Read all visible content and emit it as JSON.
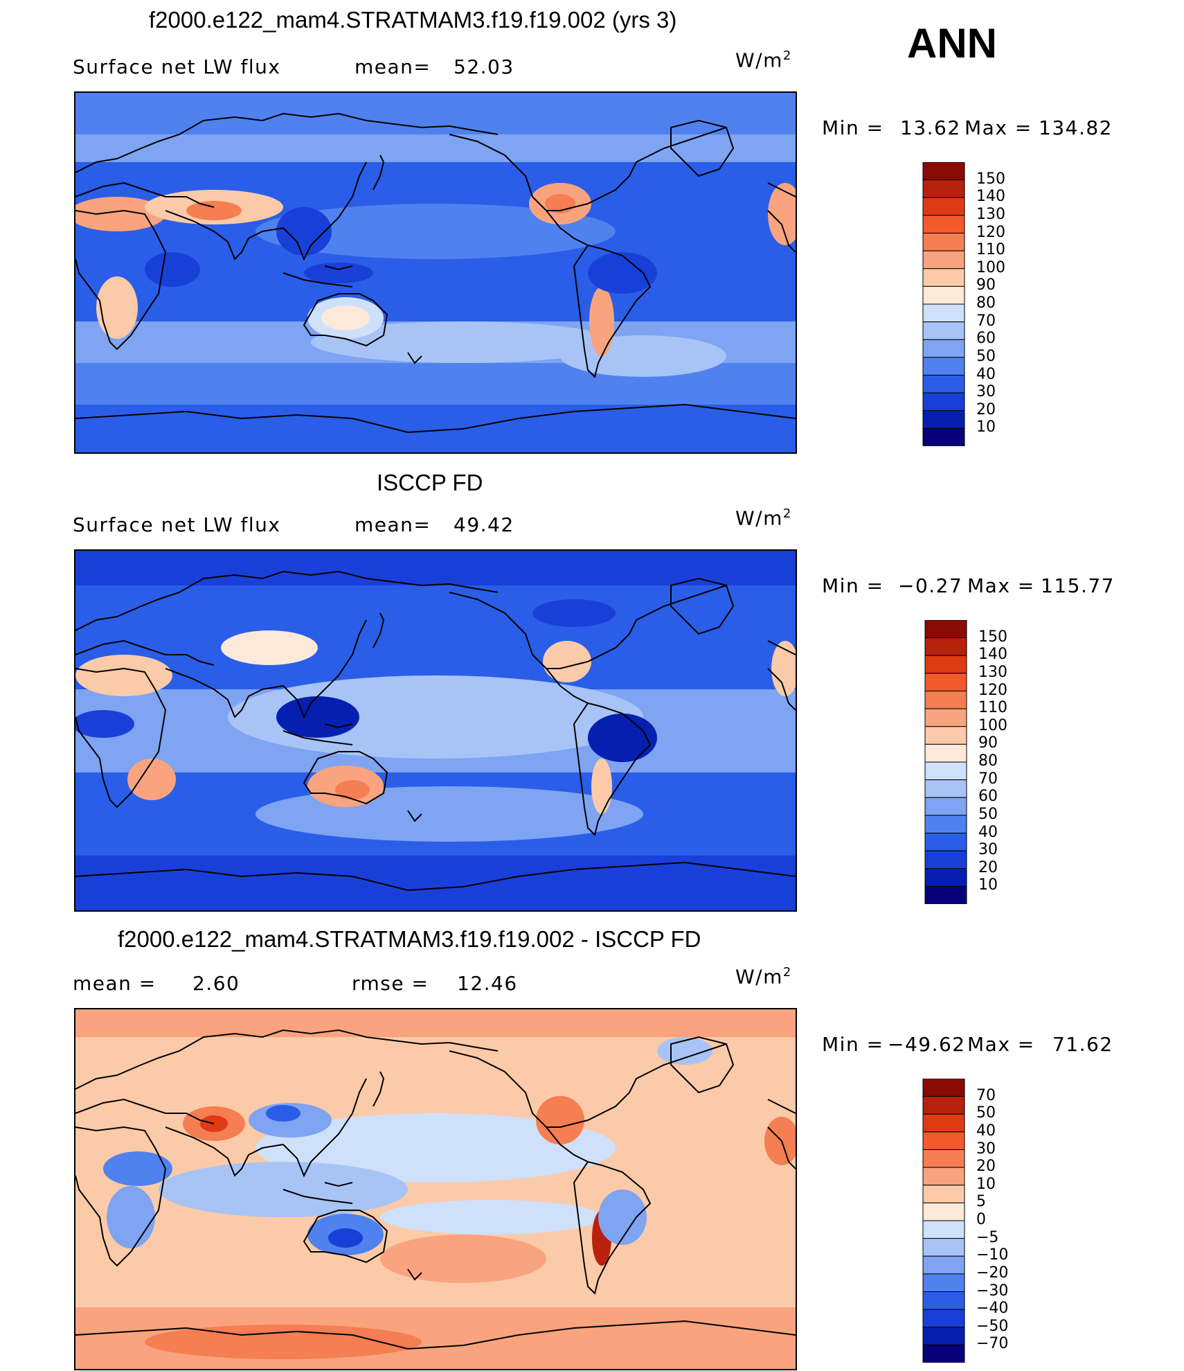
{
  "season": "ANN",
  "colors": {
    "abs_scale": [
      "#08007a",
      "#0520b0",
      "#1840d8",
      "#2a5ee8",
      "#4f82ee",
      "#7ea4f2",
      "#a8c4f6",
      "#cfe0fa",
      "#fde9d9",
      "#fbcaa8",
      "#f9a47e",
      "#f57e52",
      "#f25a2c",
      "#de3a14",
      "#b8210d",
      "#8a0a06"
    ],
    "diff_scale": [
      "#08007a",
      "#0520b0",
      "#1840d8",
      "#2a5ee8",
      "#4f82ee",
      "#7ea4f2",
      "#a8c4f6",
      "#cfe0fa",
      "#fde9d9",
      "#fbcaa8",
      "#f9a47e",
      "#f57e52",
      "#f25a2c",
      "#de3a14",
      "#b8210d",
      "#8a0a06"
    ]
  },
  "panels": [
    {
      "title": "f2000.e122_mam4.STRATMAM3.f19.f19.002 (yrs 3)",
      "variable": "Surface net LW flux",
      "stat1_label": "mean=",
      "stat1_value": "52.03",
      "stat2_label": "",
      "stat2_value": "",
      "units_base": "W/m",
      "units_exp": "2",
      "min_label": "Min  =",
      "min_value": "13.62",
      "max_label": "Max  =",
      "max_value": "134.82",
      "colorbar_labels": [
        "150",
        "140",
        "130",
        "120",
        "110",
        "100",
        "90",
        "80",
        "70",
        "60",
        "50",
        "40",
        "30",
        "20",
        "10"
      ]
    },
    {
      "title": "ISCCP FD",
      "variable": "Surface net LW flux",
      "stat1_label": "mean=",
      "stat1_value": "49.42",
      "stat2_label": "",
      "stat2_value": "",
      "units_base": "W/m",
      "units_exp": "2",
      "min_label": "Min  =",
      "min_value": "−0.27",
      "max_label": "Max  =",
      "max_value": "115.77",
      "colorbar_labels": [
        "150",
        "140",
        "130",
        "120",
        "110",
        "100",
        "90",
        "80",
        "70",
        "60",
        "50",
        "40",
        "30",
        "20",
        "10"
      ]
    },
    {
      "title": "f2000.e122_mam4.STRATMAM3.f19.f19.002 - ISCCP FD",
      "variable": "",
      "stat1_label": "mean  =",
      "stat1_value": "2.60",
      "stat2_label": "rmse  =",
      "stat2_value": "12.46",
      "units_base": "W/m",
      "units_exp": "2",
      "min_label": "Min  =",
      "min_value": "−49.62",
      "max_label": "Max  =",
      "max_value": "71.62",
      "colorbar_labels": [
        "70",
        "50",
        "40",
        "30",
        "20",
        "10",
        "5",
        "0",
        "−5",
        "−10",
        "−20",
        "−30",
        "−40",
        "−50",
        "−70"
      ]
    }
  ]
}
